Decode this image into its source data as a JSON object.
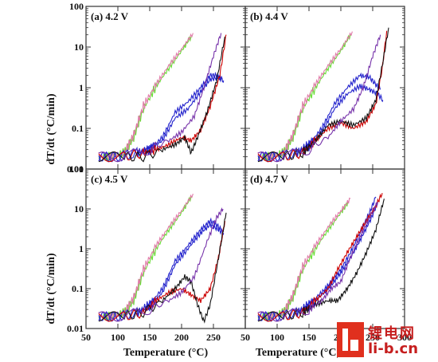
{
  "watermark": {
    "line1": "锂电网",
    "line2": "li-b.cn"
  },
  "chart_data": [
    {
      "type": "line",
      "title": "(a) 4.2 V",
      "ylabel": "dT/dt (°C/min)",
      "xlabel": "",
      "xlim": [
        50,
        300
      ],
      "ylim": [
        0.01,
        100
      ],
      "yscale": "log",
      "y_ticks": [
        "0.01",
        "0.1",
        "1",
        "10",
        "100"
      ],
      "x_ticks": [],
      "series": [
        {
          "color": "#66dd33",
          "x": [
            70,
            90,
            110,
            125,
            140,
            160,
            180,
            200,
            215
          ],
          "y": [
            0.02,
            0.02,
            0.025,
            0.06,
            0.3,
            1.1,
            3,
            8,
            18
          ]
        },
        {
          "color": "#e07aa8",
          "x": [
            70,
            90,
            110,
            125,
            140,
            160,
            180,
            200,
            218
          ],
          "y": [
            0.02,
            0.02,
            0.025,
            0.07,
            0.35,
            1.2,
            3.5,
            9,
            22
          ]
        },
        {
          "color": "#2222cc",
          "x": [
            70,
            100,
            130,
            150,
            170,
            190,
            210,
            230,
            245,
            255,
            262
          ],
          "y": [
            0.02,
            0.02,
            0.025,
            0.03,
            0.06,
            0.25,
            0.45,
            1.0,
            2.0,
            2.0,
            1.6
          ]
        },
        {
          "color": "#2222cc",
          "x": [
            70,
            100,
            130,
            150,
            170,
            190,
            210,
            230,
            245,
            258,
            266
          ],
          "y": [
            0.02,
            0.02,
            0.025,
            0.03,
            0.05,
            0.18,
            0.3,
            0.8,
            1.6,
            1.8,
            1.5
          ]
        },
        {
          "color": "#cc0000",
          "x": [
            70,
            110,
            140,
            160,
            180,
            200,
            215,
            230,
            245,
            260,
            270
          ],
          "y": [
            0.02,
            0.02,
            0.025,
            0.03,
            0.04,
            0.06,
            0.05,
            0.09,
            0.35,
            2.0,
            20
          ]
        },
        {
          "color": "#111111",
          "x": [
            70,
            110,
            140,
            170,
            190,
            205,
            215,
            225,
            240,
            255,
            268
          ],
          "y": [
            0.02,
            0.02,
            0.02,
            0.03,
            0.04,
            0.06,
            0.025,
            0.06,
            0.25,
            1.5,
            18
          ]
        },
        {
          "color": "#7733aa",
          "x": [
            70,
            110,
            150,
            180,
            200,
            220,
            235,
            250,
            262
          ],
          "y": [
            0.02,
            0.02,
            0.03,
            0.05,
            0.08,
            0.2,
            1.0,
            6,
            22
          ]
        }
      ]
    },
    {
      "type": "line",
      "title": "(b) 4.4 V",
      "ylabel": "",
      "xlabel": "",
      "xlim": [
        50,
        300
      ],
      "ylim": [
        0.01,
        100
      ],
      "yscale": "log",
      "y_ticks": [],
      "x_ticks": [],
      "series": [
        {
          "color": "#66dd33",
          "x": [
            70,
            90,
            110,
            125,
            140,
            160,
            180,
            200,
            215
          ],
          "y": [
            0.02,
            0.02,
            0.025,
            0.06,
            0.3,
            1.0,
            3,
            8,
            20
          ]
        },
        {
          "color": "#e07aa8",
          "x": [
            70,
            90,
            110,
            125,
            140,
            160,
            180,
            200,
            218
          ],
          "y": [
            0.02,
            0.02,
            0.025,
            0.07,
            0.35,
            1.2,
            3.5,
            9,
            24
          ]
        },
        {
          "color": "#2222cc",
          "x": [
            70,
            100,
            130,
            150,
            170,
            190,
            210,
            230,
            245,
            255,
            262
          ],
          "y": [
            0.02,
            0.02,
            0.025,
            0.04,
            0.1,
            0.4,
            1.0,
            2.0,
            1.8,
            1.2,
            0.9
          ]
        },
        {
          "color": "#2222cc",
          "x": [
            70,
            100,
            130,
            150,
            170,
            190,
            210,
            230,
            245,
            258,
            266
          ],
          "y": [
            0.02,
            0.02,
            0.025,
            0.035,
            0.08,
            0.3,
            0.7,
            1.1,
            0.9,
            0.7,
            0.5
          ]
        },
        {
          "color": "#cc0000",
          "x": [
            70,
            110,
            140,
            160,
            180,
            200,
            220,
            240,
            255,
            265,
            272
          ],
          "y": [
            0.02,
            0.02,
            0.025,
            0.05,
            0.1,
            0.14,
            0.1,
            0.15,
            0.4,
            3.0,
            25
          ]
        },
        {
          "color": "#111111",
          "x": [
            70,
            110,
            140,
            160,
            180,
            200,
            220,
            240,
            255,
            265,
            275
          ],
          "y": [
            0.02,
            0.02,
            0.025,
            0.05,
            0.12,
            0.15,
            0.12,
            0.18,
            0.5,
            3.5,
            30
          ]
        },
        {
          "color": "#7733aa",
          "x": [
            70,
            110,
            150,
            180,
            200,
            220,
            235,
            250,
            262
          ],
          "y": [
            0.02,
            0.02,
            0.03,
            0.06,
            0.15,
            0.3,
            1.0,
            6,
            20
          ]
        }
      ]
    },
    {
      "type": "line",
      "title": "(c) 4.5 V",
      "ylabel": "dT/dt (°C/min)",
      "xlabel": "Temperature (°C)",
      "xlim": [
        50,
        300
      ],
      "ylim": [
        0.01,
        100
      ],
      "yscale": "log",
      "y_ticks": [
        "0.01",
        "0.1",
        "1",
        "10",
        "100"
      ],
      "x_ticks": [
        "50",
        "100",
        "150",
        "200",
        "250"
      ],
      "series": [
        {
          "color": "#66dd33",
          "x": [
            70,
            90,
            110,
            125,
            140,
            160,
            180,
            200,
            215
          ],
          "y": [
            0.02,
            0.02,
            0.025,
            0.05,
            0.25,
            1.0,
            3,
            8,
            20
          ]
        },
        {
          "color": "#e07aa8",
          "x": [
            70,
            90,
            110,
            125,
            140,
            160,
            180,
            200,
            218
          ],
          "y": [
            0.02,
            0.02,
            0.025,
            0.06,
            0.3,
            1.2,
            3.5,
            9,
            24
          ]
        },
        {
          "color": "#2222cc",
          "x": [
            70,
            100,
            130,
            150,
            170,
            190,
            210,
            230,
            245,
            255,
            262
          ],
          "y": [
            0.02,
            0.02,
            0.025,
            0.04,
            0.1,
            0.5,
            1.2,
            3.0,
            5.0,
            4.0,
            3.0
          ]
        },
        {
          "color": "#2222cc",
          "x": [
            70,
            100,
            130,
            150,
            170,
            190,
            210,
            230,
            245,
            258,
            266
          ],
          "y": [
            0.02,
            0.02,
            0.025,
            0.035,
            0.08,
            0.4,
            1.0,
            2.5,
            4.0,
            3.0,
            2.5
          ]
        },
        {
          "color": "#cc0000",
          "x": [
            70,
            110,
            140,
            160,
            180,
            200,
            215,
            230,
            245,
            258,
            268
          ],
          "y": [
            0.02,
            0.02,
            0.025,
            0.05,
            0.08,
            0.1,
            0.07,
            0.05,
            0.1,
            0.6,
            5
          ]
        },
        {
          "color": "#111111",
          "x": [
            70,
            110,
            140,
            170,
            190,
            205,
            215,
            225,
            235,
            245,
            258,
            270
          ],
          "y": [
            0.02,
            0.02,
            0.025,
            0.05,
            0.1,
            0.2,
            0.15,
            0.04,
            0.015,
            0.04,
            0.6,
            8
          ]
        },
        {
          "color": "#7733aa",
          "x": [
            70,
            110,
            150,
            180,
            200,
            220,
            240,
            255,
            265
          ],
          "y": [
            0.02,
            0.02,
            0.03,
            0.05,
            0.08,
            0.2,
            1.5,
            6,
            10
          ]
        }
      ]
    },
    {
      "type": "line",
      "title": "(d) 4.7 V",
      "ylabel": "",
      "xlabel": "Temperature (°C)",
      "xlim": [
        50,
        300
      ],
      "ylim": [
        0.01,
        100
      ],
      "yscale": "log",
      "y_ticks": [],
      "x_ticks": [
        "50",
        "100",
        "150",
        "200",
        "250",
        "300"
      ],
      "series": [
        {
          "color": "#66dd33",
          "x": [
            70,
            90,
            110,
            125,
            140,
            160,
            180,
            200,
            212
          ],
          "y": [
            0.02,
            0.02,
            0.025,
            0.06,
            0.3,
            1.0,
            3,
            8,
            15
          ]
        },
        {
          "color": "#e07aa8",
          "x": [
            70,
            90,
            110,
            125,
            140,
            160,
            180,
            200,
            215
          ],
          "y": [
            0.02,
            0.02,
            0.025,
            0.07,
            0.35,
            1.2,
            3.5,
            9,
            18
          ]
        },
        {
          "color": "#2222cc",
          "x": [
            70,
            100,
            130,
            150,
            170,
            185,
            200,
            215,
            230,
            245,
            255
          ],
          "y": [
            0.02,
            0.02,
            0.025,
            0.04,
            0.08,
            0.15,
            0.3,
            0.8,
            2.5,
            8,
            20
          ]
        },
        {
          "color": "#2222cc",
          "x": [
            70,
            100,
            130,
            150,
            170,
            185,
            200,
            218,
            233,
            248,
            258
          ],
          "y": [
            0.02,
            0.02,
            0.025,
            0.035,
            0.07,
            0.12,
            0.25,
            0.7,
            2.0,
            6,
            15
          ]
        },
        {
          "color": "#cc0000",
          "x": [
            70,
            110,
            140,
            160,
            180,
            195,
            210,
            225,
            240,
            255,
            265
          ],
          "y": [
            0.02,
            0.02,
            0.025,
            0.05,
            0.1,
            0.3,
            0.8,
            2.0,
            5,
            12,
            25
          ]
        },
        {
          "color": "#111111",
          "x": [
            70,
            110,
            140,
            160,
            180,
            195,
            210,
            225,
            240,
            255,
            268
          ],
          "y": [
            0.02,
            0.02,
            0.025,
            0.04,
            0.05,
            0.05,
            0.1,
            0.25,
            0.8,
            3,
            18
          ]
        },
        {
          "color": "#7733aa",
          "x": [
            70,
            110,
            150,
            170,
            185,
            200,
            215,
            230,
            245,
            258
          ],
          "y": [
            0.02,
            0.02,
            0.03,
            0.05,
            0.1,
            0.15,
            0.6,
            2.0,
            6,
            15
          ]
        }
      ]
    }
  ]
}
